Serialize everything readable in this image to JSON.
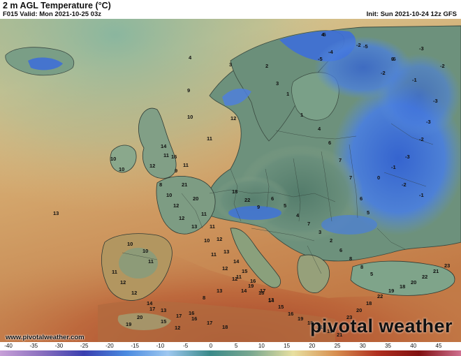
{
  "header": {
    "title": "2 m AGL Temperature (°C)",
    "valid": "F015 Valid: Mon 2021-10-25 03z",
    "init": "Init: Sun 2021-10-24 12z GFS"
  },
  "credit": "www.pivotalweather.com",
  "logo_text": "pivotal weather",
  "colorbar": {
    "unit": "°C",
    "ticks": [
      "-40",
      "-35",
      "-30",
      "-25",
      "-20",
      "-15",
      "-10",
      "-5",
      "0",
      "5",
      "10",
      "15",
      "20",
      "25",
      "30",
      "35",
      "40",
      "45"
    ],
    "min": -40,
    "max": 50,
    "colors": [
      "#c8a0d8",
      "#8a6fbf",
      "#3a3fb0",
      "#4a8ae0",
      "#9ec8f0",
      "#3a8a8a",
      "#7aa890",
      "#e8e0a0",
      "#d89050",
      "#b03020",
      "#801010",
      "#d07090"
    ]
  },
  "map": {
    "region": "Europe",
    "palette": {
      "sea_warm": "#c9955b",
      "sea_mild": "#d9bf84",
      "sea_cool": "#a8b38a",
      "land_cool": "#5f8676",
      "land_cold": "#3d6fd8",
      "land_warm": "#bf6a3a",
      "land_hot": "#a43b28"
    },
    "labels": [
      "-6",
      "-6",
      "-5",
      "-3",
      "-2",
      "-4",
      "-5",
      "-2",
      "-1",
      "-2",
      "-3",
      "-3",
      "-2",
      "-3",
      "-1",
      "0",
      "-2",
      "-1",
      "2",
      "3",
      "1",
      "1",
      "4",
      "6",
      "7",
      "7",
      "6",
      "5",
      "4",
      "3",
      "9",
      "10",
      "11",
      "12",
      "13",
      "14",
      "16",
      "9",
      "11",
      "11",
      "12",
      "10",
      "10",
      "8",
      "10",
      "12",
      "12",
      "13",
      "10",
      "11",
      "12",
      "12",
      "14",
      "10",
      "10",
      "11",
      "11",
      "12",
      "12",
      "14",
      "13",
      "17",
      "16",
      "17",
      "18",
      "19",
      "20",
      "17",
      "15",
      "12",
      "16",
      "8",
      "13",
      "11",
      "19",
      "18",
      "13",
      "15",
      "16",
      "19",
      "18",
      "21",
      "19",
      "21",
      "23",
      "20",
      "18",
      "22",
      "19",
      "18",
      "20",
      "22",
      "21",
      "23",
      "21",
      "20",
      "11",
      "11",
      "12",
      "13",
      "14",
      "15",
      "16",
      "17",
      "14",
      "18",
      "22",
      "9",
      "6",
      "5",
      "4",
      "7",
      "3",
      "2",
      "6",
      "8",
      "8",
      "5",
      "4",
      "9"
    ]
  }
}
